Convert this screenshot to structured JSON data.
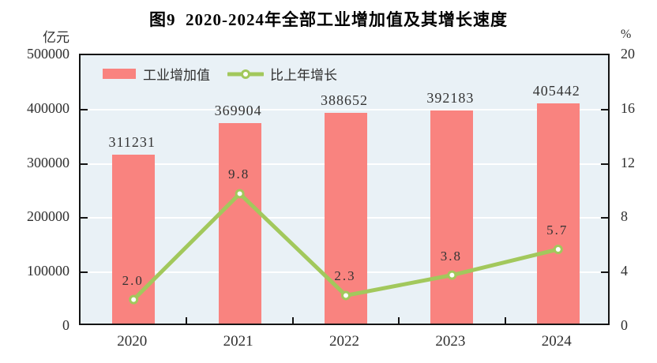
{
  "figure": {
    "title": "图9  2020-2024年全部工业增加值及其增长速度",
    "left_axis_unit": "亿元",
    "right_axis_unit": "%"
  },
  "legend": [
    {
      "label": "工业增加值",
      "type": "bar",
      "color": "#F9837F"
    },
    {
      "label": "比上年增长",
      "type": "line",
      "color": "#A2C85C"
    }
  ],
  "chart_data": {
    "type": "bar",
    "subtype": "bar+line-dual-axis",
    "title": "图9  2020-2024年全部工业增加值及其增长速度",
    "categories": [
      "2020",
      "2021",
      "2022",
      "2023",
      "2024"
    ],
    "series": [
      {
        "name": "工业增加值",
        "type": "bar",
        "axis": "left",
        "unit": "亿元",
        "color": "#F9837F",
        "values": [
          311231,
          369904,
          388652,
          392183,
          405442
        ],
        "value_labels": [
          "311231",
          "369904",
          "388652",
          "392183",
          "405442"
        ]
      },
      {
        "name": "比上年增长",
        "type": "line",
        "axis": "right",
        "unit": "%",
        "color": "#A2C85C",
        "marker": "circle-white-fill",
        "values": [
          2.0,
          9.8,
          2.3,
          3.8,
          5.7
        ],
        "value_labels": [
          "2.0",
          "9.8",
          "2.3",
          "3.8",
          "5.7"
        ]
      }
    ],
    "left_axis": {
      "unit": "亿元",
      "min": 0,
      "max": 500000,
      "ticks": [
        0,
        100000,
        200000,
        300000,
        400000,
        500000
      ],
      "tick_labels": [
        "0",
        "100000",
        "200000",
        "300000",
        "400000",
        "500000"
      ]
    },
    "right_axis": {
      "unit": "%",
      "min": 0,
      "max": 20,
      "ticks": [
        0,
        4,
        8,
        12,
        16,
        20
      ],
      "tick_labels": [
        "0",
        "4",
        "8",
        "12",
        "16",
        "20"
      ]
    },
    "grid": true,
    "gridline_color": "#ffffff",
    "plot_bg": "#E9F1F6",
    "legend_position": "top-left-inside"
  }
}
